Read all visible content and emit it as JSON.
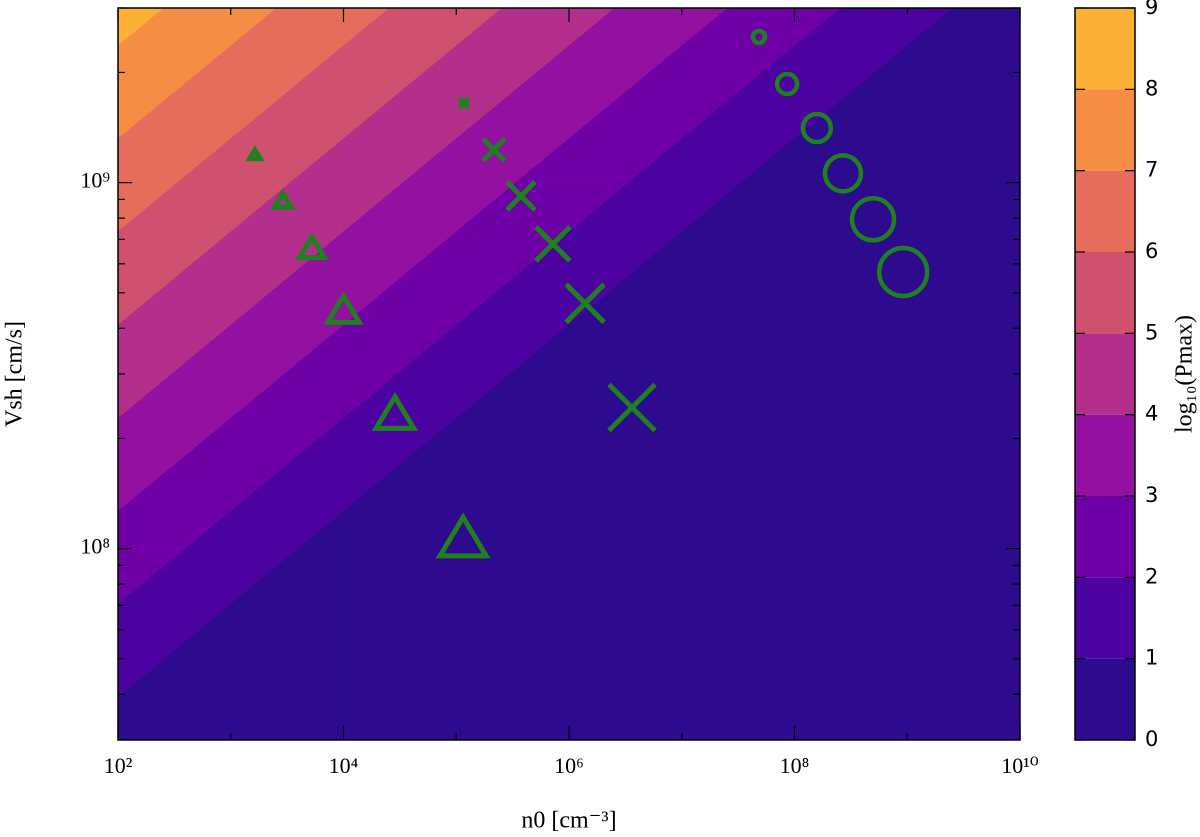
{
  "chart_data": {
    "type": "contour",
    "x_label": "n0 [cm⁻³]",
    "y_label": "Vsh [cm/s]",
    "colorbar_label": "log₁₀(Pmax)",
    "log_x": true,
    "log_y": true,
    "xlim": [
      100,
      10000000000
    ],
    "ylim": [
      30000000,
      3000000000
    ],
    "xticks": [
      {
        "value": 100,
        "label": "10²"
      },
      {
        "value": 10000,
        "label": "10⁴"
      },
      {
        "value": 1000000,
        "label": "10⁶"
      },
      {
        "value": 100000000,
        "label": "10⁸"
      },
      {
        "value": 10000000000,
        "label": "10¹⁰"
      }
    ],
    "xminorticks": [
      1000,
      100000,
      10000000,
      1000000000
    ],
    "yticks": [
      {
        "value": 100000000,
        "label": "10⁸"
      },
      {
        "value": 1000000000,
        "label": "10⁹"
      }
    ],
    "yminorticks": [
      40000000,
      50000000,
      60000000,
      70000000,
      80000000,
      90000000,
      200000000,
      300000000,
      400000000,
      500000000,
      600000000,
      700000000,
      800000000,
      900000000,
      2000000000,
      3000000000
    ],
    "contour": {
      "x": [
        100,
        10000,
        1000000,
        100000000,
        10000000000
      ],
      "y": [
        30000000,
        100000000,
        300000000,
        1000000000,
        3000000000
      ],
      "z": [
        [
          0.54,
          -1.47,
          -3.47,
          -5.47,
          -7.47
        ],
        [
          2.59,
          0.59,
          -1.41,
          -3.41,
          -5.41
        ],
        [
          4.47,
          2.47,
          0.47,
          -1.53,
          -3.53
        ],
        [
          6.52,
          4.52,
          2.52,
          0.52,
          -1.48
        ],
        [
          8.4,
          6.4,
          4.4,
          2.4,
          0.4
        ]
      ],
      "levels": [
        0,
        1,
        2,
        3,
        4,
        5,
        6,
        7,
        8,
        9
      ],
      "colors": [
        "#2e0a8e",
        "#4c02a1",
        "#6f00a8",
        "#9410a0",
        "#b42e8b",
        "#d0506f",
        "#e66d5c",
        "#f68d45",
        "#fbb135"
      ]
    },
    "series": [
      {
        "marker": "triangle",
        "color": "#1f801f",
        "x": [
          1640,
          2900,
          5250,
          10000,
          28600,
          115000
        ],
        "y": [
          1190000000,
          890000000,
          660000000,
          446000000,
          232000000,
          106000000
        ],
        "sizes": [
          5,
          8,
          12,
          15,
          18,
          22
        ]
      },
      {
        "marker": "cross",
        "color": "#1f801f",
        "x": [
          117000,
          216000,
          375000,
          720000,
          1390000,
          3620000
        ],
        "y": [
          1650000000,
          1230000000,
          920000000,
          680000000,
          468000000,
          243000000
        ],
        "sizes": [
          5,
          11,
          14,
          17,
          19,
          23
        ]
      },
      {
        "marker": "circle",
        "color": "#1f801f",
        "x": [
          48400000,
          86000000,
          158000000,
          269000000,
          497000000,
          920000000
        ],
        "y": [
          2500000000,
          1860000000,
          1410000000,
          1060000000,
          794000000,
          570000000
        ],
        "sizes": [
          6,
          10,
          14,
          18,
          21,
          24
        ]
      }
    ]
  }
}
